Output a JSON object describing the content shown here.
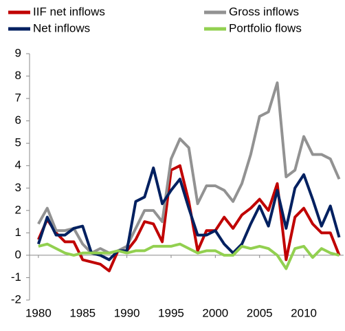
{
  "chart_data": {
    "type": "line",
    "x": [
      1980,
      1981,
      1982,
      1983,
      1984,
      1985,
      1986,
      1987,
      1988,
      1989,
      1990,
      1991,
      1992,
      1993,
      1994,
      1995,
      1996,
      1997,
      1998,
      1999,
      2000,
      2001,
      2002,
      2003,
      2004,
      2005,
      2006,
      2007,
      2008,
      2009,
      2010,
      2011,
      2012,
      2013,
      2014
    ],
    "series": [
      {
        "name": "IIF net inflows",
        "color": "#c00000",
        "values": [
          0.7,
          1.6,
          1.0,
          0.6,
          0.6,
          -0.2,
          -0.3,
          -0.4,
          -0.7,
          0.2,
          0.2,
          0.7,
          1.5,
          1.4,
          0.6,
          3.8,
          4.0,
          2.4,
          0.2,
          1.1,
          1.1,
          1.7,
          1.2,
          1.8,
          2.1,
          2.5,
          2.0,
          3.2,
          -0.2,
          1.7,
          2.1,
          1.4,
          1.0,
          1.0,
          0.0
        ]
      },
      {
        "name": "Gross inflows",
        "color": "#929292",
        "values": [
          1.4,
          2.1,
          1.1,
          1.1,
          1.2,
          0.5,
          0.1,
          0.3,
          0.1,
          0.2,
          0.4,
          1.2,
          2.0,
          2.0,
          1.5,
          4.3,
          5.2,
          4.8,
          2.3,
          3.1,
          3.1,
          2.9,
          2.4,
          3.2,
          4.5,
          6.2,
          6.4,
          7.7,
          3.5,
          3.8,
          5.3,
          4.5,
          4.5,
          4.3,
          3.4
        ]
      },
      {
        "name": "Net inflows",
        "color": "#002060",
        "values": [
          0.5,
          1.7,
          0.9,
          0.9,
          1.2,
          1.3,
          0.1,
          0.0,
          -0.2,
          0.2,
          0.2,
          2.4,
          2.6,
          3.9,
          2.3,
          2.9,
          3.4,
          2.1,
          0.9,
          0.9,
          1.1,
          0.5,
          0.1,
          0.5,
          1.4,
          2.2,
          1.3,
          2.9,
          1.2,
          3.0,
          3.6,
          2.5,
          1.3,
          2.2,
          0.8
        ]
      },
      {
        "name": "Portfolio flows",
        "color": "#92d050",
        "values": [
          0.4,
          0.5,
          0.3,
          0.1,
          0.0,
          0.1,
          0.1,
          0.1,
          0.1,
          0.2,
          0.1,
          0.2,
          0.2,
          0.4,
          0.4,
          0.4,
          0.5,
          0.3,
          0.1,
          0.2,
          0.2,
          0.0,
          0.0,
          0.4,
          0.3,
          0.4,
          0.3,
          0.0,
          -0.6,
          0.3,
          0.4,
          -0.1,
          0.3,
          0.1,
          0.0
        ]
      }
    ],
    "xlim": [
      1979,
      2014.5
    ],
    "xticks": [
      1980,
      1985,
      1990,
      1995,
      2000,
      2005,
      2010
    ],
    "ylim": [
      -2,
      9
    ],
    "yticks": [
      -2,
      -1,
      0,
      1,
      2,
      3,
      4,
      5,
      6,
      7,
      8,
      9
    ]
  }
}
